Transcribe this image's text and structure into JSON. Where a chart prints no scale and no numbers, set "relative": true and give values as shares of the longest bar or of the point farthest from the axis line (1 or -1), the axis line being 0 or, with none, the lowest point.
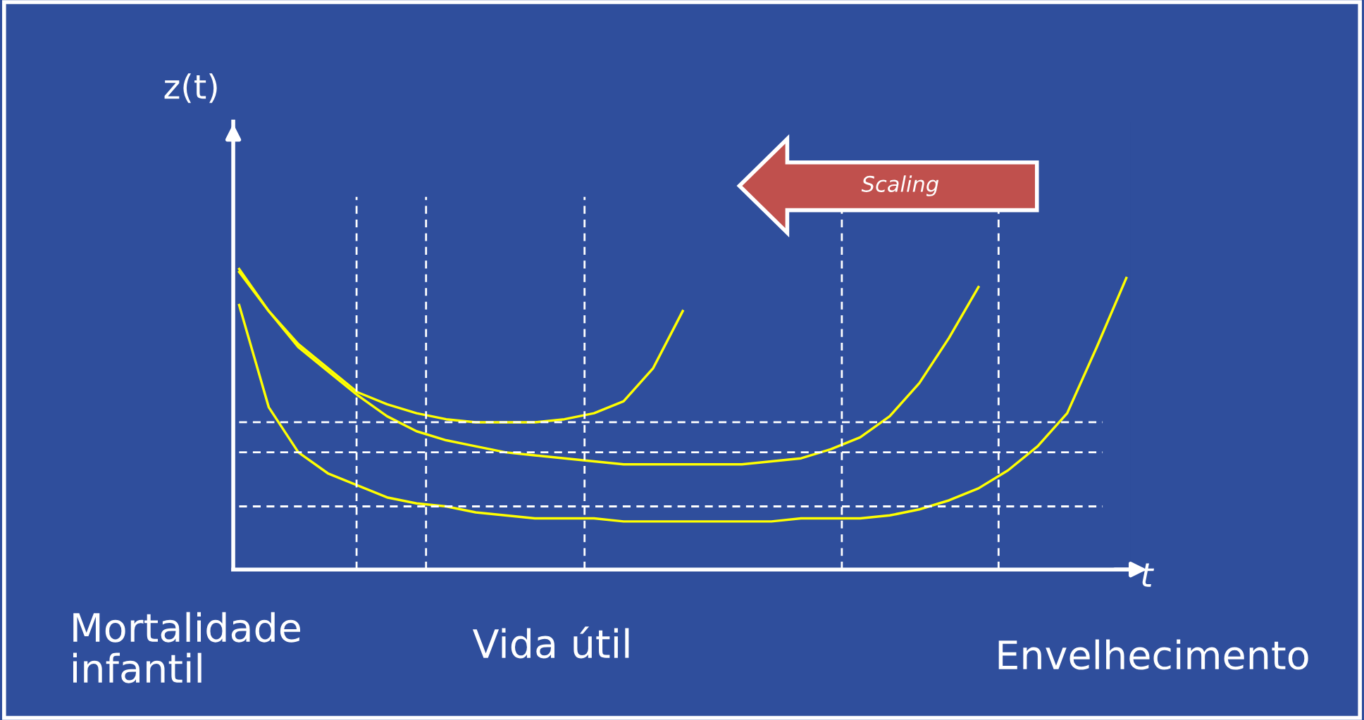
{
  "chart_data": {
    "type": "line",
    "relative": true,
    "xlabel": "t",
    "categories": [
      null,
      null,
      null,
      null,
      null,
      null,
      null,
      null,
      null,
      null,
      null,
      null,
      null,
      null,
      null,
      null,
      null,
      null,
      null,
      null,
      null,
      null,
      null,
      null,
      null,
      null,
      null,
      null,
      null,
      null,
      null
    ],
    "series": [
      {
        "color": "#ffff00",
        "values": [
          0.99,
          0.86,
          0.75,
          0.67,
          0.59,
          0.55,
          0.52,
          0.5,
          0.49,
          0.49,
          0.49,
          0.5,
          0.52,
          0.56,
          0.67,
          0.86,
          null,
          null,
          null,
          null,
          null,
          null,
          null,
          null,
          null,
          null,
          null,
          null,
          null,
          null,
          null
        ]
      },
      {
        "color": "#ffff00",
        "values": [
          1.0,
          0.86,
          0.74,
          0.66,
          0.58,
          0.51,
          0.46,
          0.43,
          0.41,
          0.39,
          0.38,
          0.37,
          0.36,
          0.35,
          0.35,
          0.35,
          0.35,
          0.35,
          0.36,
          0.37,
          0.4,
          0.44,
          0.51,
          0.62,
          0.77,
          0.94,
          null,
          null,
          null,
          null,
          null
        ]
      },
      {
        "color": "#ffff00",
        "values": [
          0.88,
          0.54,
          0.39,
          0.32,
          0.28,
          0.24,
          0.22,
          0.21,
          0.19,
          0.18,
          0.17,
          0.17,
          0.17,
          0.16,
          0.16,
          0.16,
          0.16,
          0.16,
          0.16,
          0.17,
          0.17,
          0.17,
          0.18,
          0.2,
          0.23,
          0.27,
          0.33,
          0.41,
          0.52,
          0.74,
          0.97
        ]
      }
    ],
    "ref_lines": [
      {
        "axis": "y",
        "value": 0.49,
        "color": "#ffffff",
        "line_style": "dashed"
      },
      {
        "axis": "y",
        "value": 0.39,
        "color": "#ffffff",
        "line_style": "dashed"
      },
      {
        "axis": "y",
        "value": 0.21,
        "color": "#ffffff",
        "line_style": "dashed"
      }
    ],
    "annotations": [
      "z(t)",
      "Scaling",
      "Mortalidade\ninfantil",
      "Vida útil",
      "Envelhecimento"
    ],
    "marker": "none",
    "line_style": "solid",
    "tick_labels": false
  }
}
